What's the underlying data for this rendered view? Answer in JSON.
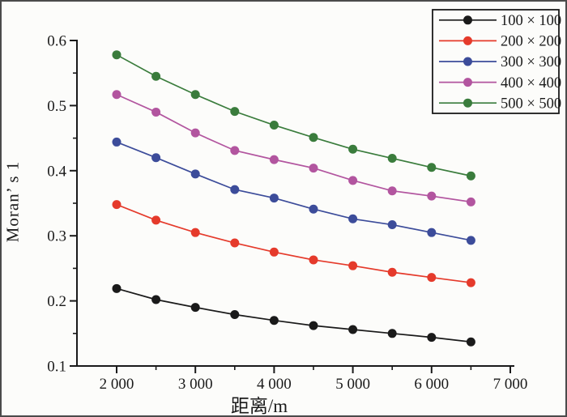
{
  "figure": {
    "background": "#fcfcfa",
    "border_color": "#4b4b4b",
    "axis_color": "#1a1a1a"
  },
  "chart_data": {
    "type": "line",
    "title": "",
    "xlabel": "距离/m",
    "ylabel": "Moran’ s 1",
    "xlim": [
      1500,
      7050
    ],
    "ylim": [
      0.1,
      0.6
    ],
    "grid": false,
    "legend_position": "top-right",
    "x": [
      2000,
      2500,
      3000,
      3500,
      4000,
      4500,
      5000,
      5500,
      6000,
      6500
    ],
    "x_major_ticks": [
      2000,
      3000,
      4000,
      5000,
      6000,
      7000
    ],
    "x_minor_ticks": [
      2500,
      3500,
      4500,
      5500,
      6500
    ],
    "x_tick_labels": [
      "2 000",
      "3 000",
      "4 000",
      "5 000",
      "6 000",
      "7 000"
    ],
    "y_major_ticks": [
      0.1,
      0.2,
      0.3,
      0.4,
      0.5,
      0.6
    ],
    "y_minor_ticks": [
      0.15,
      0.25,
      0.35,
      0.45,
      0.55
    ],
    "y_tick_labels": [
      "0.1",
      "0.2",
      "0.3",
      "0.4",
      "0.5",
      "0.6"
    ],
    "series": [
      {
        "name": "100 × 100",
        "color": "#1a1a1a",
        "values": [
          0.219,
          0.202,
          0.19,
          0.179,
          0.17,
          0.162,
          0.156,
          0.15,
          0.144,
          0.137
        ]
      },
      {
        "name": "200 × 200",
        "color": "#e53a2b",
        "values": [
          0.348,
          0.324,
          0.305,
          0.289,
          0.275,
          0.263,
          0.254,
          0.244,
          0.236,
          0.228
        ]
      },
      {
        "name": "300 × 300",
        "color": "#3c4c9a",
        "values": [
          0.444,
          0.42,
          0.395,
          0.371,
          0.358,
          0.341,
          0.326,
          0.317,
          0.305,
          0.293
        ]
      },
      {
        "name": "400 × 400",
        "color": "#b2559f",
        "values": [
          0.517,
          0.49,
          0.458,
          0.431,
          0.417,
          0.404,
          0.385,
          0.369,
          0.361,
          0.352
        ]
      },
      {
        "name": "500 × 500",
        "color": "#3a7c3c",
        "values": [
          0.578,
          0.545,
          0.517,
          0.491,
          0.47,
          0.451,
          0.433,
          0.419,
          0.405,
          0.392
        ]
      }
    ]
  }
}
